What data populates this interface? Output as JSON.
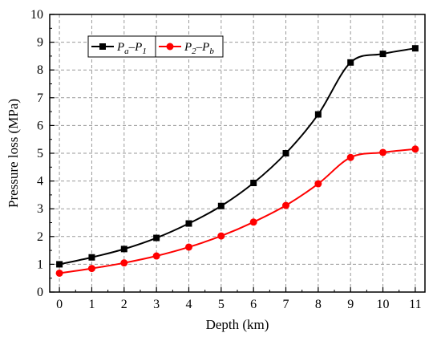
{
  "chart_data": {
    "type": "line",
    "xlabel": "Depth (km)",
    "ylabel": "Pressure loss (MPa)",
    "xlim": [
      -0.3,
      11.3
    ],
    "ylim": [
      0,
      10
    ],
    "x_ticks": [
      "0",
      "1",
      "2",
      "3",
      "4",
      "5",
      "6",
      "7",
      "8",
      "9",
      "10",
      "11"
    ],
    "y_ticks": [
      "0",
      "1",
      "2",
      "3",
      "4",
      "5",
      "6",
      "7",
      "8",
      "9",
      "10"
    ],
    "grid": true,
    "grid_style": "dashed",
    "legend_position": "top-left",
    "x": [
      0,
      1,
      2,
      3,
      4,
      5,
      6,
      7,
      8,
      9,
      10,
      11
    ],
    "series": [
      {
        "name": "Pa–P1",
        "legend": {
          "main": "P",
          "sub1": "a",
          "dash": "–",
          "main2": "P",
          "sub2": "1"
        },
        "color": "#000000",
        "marker": "square",
        "values": [
          1.0,
          1.25,
          1.55,
          1.95,
          2.47,
          3.1,
          3.93,
          5.0,
          6.4,
          8.27,
          8.58,
          8.78
        ]
      },
      {
        "name": "P2–Pb",
        "legend": {
          "main": "P",
          "sub1": "2",
          "dash": "–",
          "main2": "P",
          "sub2": "b"
        },
        "color": "#ff0000",
        "marker": "circle",
        "values": [
          0.68,
          0.85,
          1.05,
          1.3,
          1.62,
          2.02,
          2.52,
          3.12,
          3.9,
          4.85,
          5.03,
          5.15
        ]
      }
    ]
  }
}
